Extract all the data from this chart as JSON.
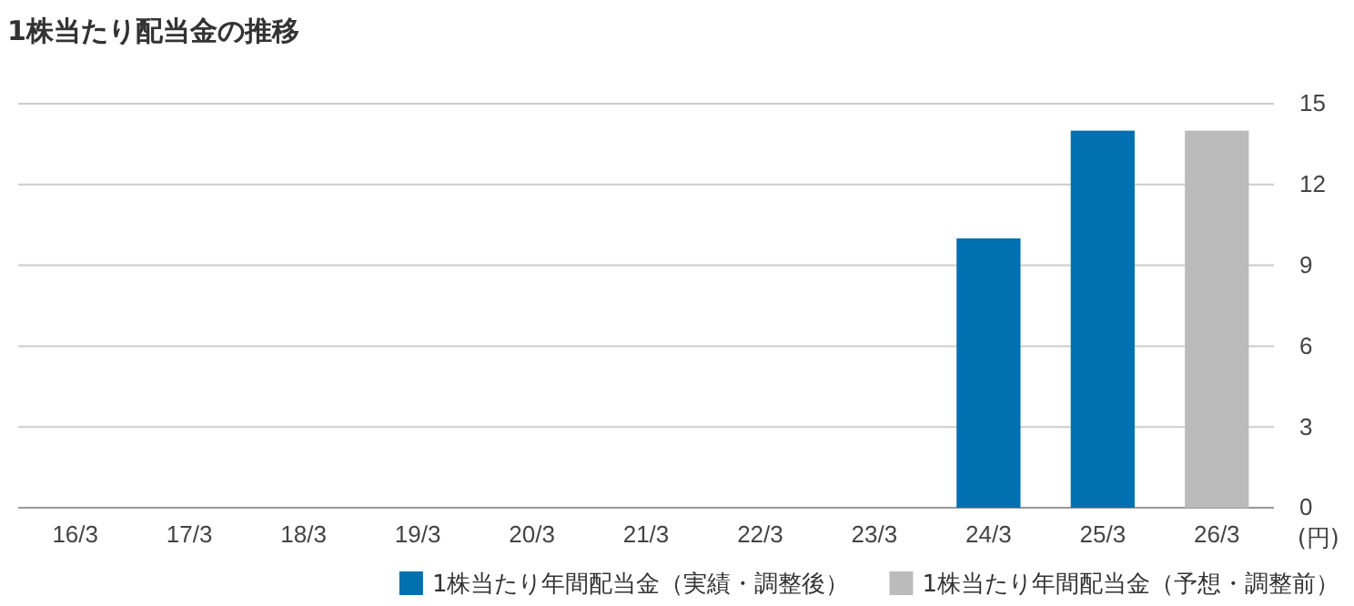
{
  "chart_data": {
    "type": "bar",
    "title": "1株当たり配当金の推移",
    "ylabel": "(円)",
    "categories": [
      "16/3",
      "17/3",
      "18/3",
      "19/3",
      "20/3",
      "21/3",
      "22/3",
      "23/3",
      "24/3",
      "25/3",
      "26/3"
    ],
    "series": [
      {
        "name": "1株当たり年間配当金（実績・調整後）",
        "color": "#0070b0",
        "values": [
          null,
          null,
          null,
          null,
          null,
          null,
          null,
          null,
          10,
          14,
          null
        ]
      },
      {
        "name": "1株当たり年間配当金（予想・調整前）",
        "color": "#bbbbbb",
        "values": [
          null,
          null,
          null,
          null,
          null,
          null,
          null,
          null,
          null,
          null,
          14
        ]
      }
    ],
    "ylim": [
      0,
      15
    ],
    "yticks": [
      0,
      3,
      6,
      9,
      12,
      15
    ],
    "grid": "y",
    "legend": "bottom right"
  }
}
